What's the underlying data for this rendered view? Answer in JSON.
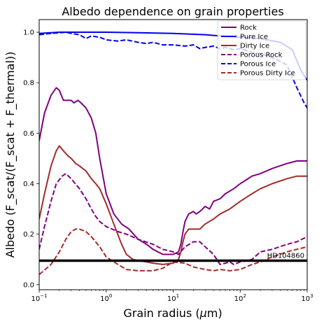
{
  "chart_data": {
    "type": "line",
    "title": "Albedo dependence on grain properties",
    "xlabel_prefix": "Grain radius (",
    "xlabel_mu": "μ",
    "xlabel_suffix": "m)",
    "ylabel": "Albedo (F_scat/(F_scat + F_thermal))",
    "x_scale": "log",
    "xlim": [
      0.1,
      1000
    ],
    "ylim": [
      -0.02,
      1.05
    ],
    "x_ticks": [
      0.1,
      1,
      10,
      100,
      1000
    ],
    "x_tick_labels": [
      {
        "base": "10",
        "exp": "−1"
      },
      {
        "base": "10",
        "exp": "0"
      },
      {
        "base": "10",
        "exp": "1"
      },
      {
        "base": "10",
        "exp": "2"
      },
      {
        "base": "10",
        "exp": "3"
      }
    ],
    "y_ticks": [
      0.0,
      0.2,
      0.4,
      0.6,
      0.8,
      1.0
    ],
    "y_tick_labels": [
      "0.0",
      "0.2",
      "0.4",
      "0.6",
      "0.8",
      "1.0"
    ],
    "grid": false,
    "legend_position": "top-right",
    "series": [
      {
        "name": "Rock",
        "color": "#800080",
        "dash": "solid",
        "points": [
          [
            0.1,
            0.57
          ],
          [
            0.12,
            0.68
          ],
          [
            0.15,
            0.75
          ],
          [
            0.18,
            0.78
          ],
          [
            0.2,
            0.77
          ],
          [
            0.23,
            0.73
          ],
          [
            0.27,
            0.73
          ],
          [
            0.3,
            0.73
          ],
          [
            0.33,
            0.72
          ],
          [
            0.38,
            0.73
          ],
          [
            0.42,
            0.72
          ],
          [
            0.5,
            0.7
          ],
          [
            0.6,
            0.66
          ],
          [
            0.7,
            0.6
          ],
          [
            0.8,
            0.5
          ],
          [
            1.0,
            0.36
          ],
          [
            1.3,
            0.28
          ],
          [
            1.7,
            0.24
          ],
          [
            2.2,
            0.22
          ],
          [
            3.0,
            0.18
          ],
          [
            4.0,
            0.16
          ],
          [
            5.0,
            0.14
          ],
          [
            7.0,
            0.12
          ],
          [
            10,
            0.12
          ],
          [
            12,
            0.13
          ],
          [
            13,
            0.16
          ],
          [
            14,
            0.21
          ],
          [
            15,
            0.25
          ],
          [
            17,
            0.28
          ],
          [
            20,
            0.29
          ],
          [
            22,
            0.28
          ],
          [
            25,
            0.29
          ],
          [
            30,
            0.31
          ],
          [
            35,
            0.3
          ],
          [
            40,
            0.33
          ],
          [
            50,
            0.34
          ],
          [
            60,
            0.36
          ],
          [
            80,
            0.38
          ],
          [
            100,
            0.4
          ],
          [
            150,
            0.43
          ],
          [
            200,
            0.44
          ],
          [
            300,
            0.46
          ],
          [
            500,
            0.48
          ],
          [
            700,
            0.49
          ],
          [
            1000,
            0.49
          ]
        ]
      },
      {
        "name": "Pure Ice",
        "color": "#0000ee",
        "dash": "solid",
        "points": [
          [
            0.1,
            0.995
          ],
          [
            0.2,
            1.0
          ],
          [
            0.3,
            1.0
          ],
          [
            1.0,
            1.0
          ],
          [
            3.0,
            0.998
          ],
          [
            10,
            0.995
          ],
          [
            30,
            0.99
          ],
          [
            50,
            0.985
          ],
          [
            100,
            0.98
          ],
          [
            200,
            0.975
          ],
          [
            400,
            0.96
          ],
          [
            600,
            0.93
          ],
          [
            800,
            0.85
          ],
          [
            1000,
            0.81
          ]
        ]
      },
      {
        "name": "Dirty Ice",
        "color": "#a52a2a",
        "dash": "solid",
        "points": [
          [
            0.1,
            0.26
          ],
          [
            0.12,
            0.36
          ],
          [
            0.15,
            0.47
          ],
          [
            0.18,
            0.53
          ],
          [
            0.2,
            0.55
          ],
          [
            0.23,
            0.53
          ],
          [
            0.27,
            0.51
          ],
          [
            0.3,
            0.5
          ],
          [
            0.35,
            0.48
          ],
          [
            0.4,
            0.47
          ],
          [
            0.5,
            0.45
          ],
          [
            0.6,
            0.42
          ],
          [
            0.7,
            0.4
          ],
          [
            0.8,
            0.38
          ],
          [
            1.0,
            0.32
          ],
          [
            1.3,
            0.24
          ],
          [
            1.7,
            0.16
          ],
          [
            2.0,
            0.12
          ],
          [
            2.5,
            0.1
          ],
          [
            3.0,
            0.095
          ],
          [
            4.0,
            0.09
          ],
          [
            5.0,
            0.085
          ],
          [
            7.0,
            0.08
          ],
          [
            10,
            0.085
          ],
          [
            12,
            0.1
          ],
          [
            13,
            0.13
          ],
          [
            14,
            0.17
          ],
          [
            15,
            0.2
          ],
          [
            17,
            0.22
          ],
          [
            20,
            0.22
          ],
          [
            25,
            0.22
          ],
          [
            30,
            0.24
          ],
          [
            40,
            0.26
          ],
          [
            50,
            0.28
          ],
          [
            70,
            0.3
          ],
          [
            100,
            0.33
          ],
          [
            150,
            0.36
          ],
          [
            200,
            0.38
          ],
          [
            300,
            0.4
          ],
          [
            500,
            0.42
          ],
          [
            700,
            0.43
          ],
          [
            1000,
            0.43
          ]
        ]
      },
      {
        "name": "Porous Rock",
        "color": "#800080",
        "dash": "dashed",
        "points": [
          [
            0.1,
            0.14
          ],
          [
            0.12,
            0.23
          ],
          [
            0.15,
            0.33
          ],
          [
            0.18,
            0.4
          ],
          [
            0.22,
            0.43
          ],
          [
            0.25,
            0.44
          ],
          [
            0.3,
            0.42
          ],
          [
            0.4,
            0.38
          ],
          [
            0.5,
            0.34
          ],
          [
            0.6,
            0.3
          ],
          [
            0.7,
            0.27
          ],
          [
            0.8,
            0.25
          ],
          [
            1.0,
            0.23
          ],
          [
            1.5,
            0.21
          ],
          [
            2.0,
            0.2
          ],
          [
            3.0,
            0.18
          ],
          [
            5.0,
            0.16
          ],
          [
            7.0,
            0.14
          ],
          [
            10,
            0.13
          ],
          [
            12,
            0.12
          ],
          [
            15,
            0.15
          ],
          [
            20,
            0.17
          ],
          [
            25,
            0.17
          ],
          [
            30,
            0.15
          ],
          [
            40,
            0.12
          ],
          [
            50,
            0.08
          ],
          [
            60,
            0.085
          ],
          [
            70,
            0.09
          ],
          [
            80,
            0.08
          ],
          [
            100,
            0.09
          ],
          [
            150,
            0.1
          ],
          [
            200,
            0.13
          ],
          [
            300,
            0.14
          ],
          [
            500,
            0.16
          ],
          [
            700,
            0.17
          ],
          [
            1000,
            0.19
          ]
        ]
      },
      {
        "name": "Porous Ice",
        "color": "#0000ee",
        "dash": "dashed",
        "points": [
          [
            0.1,
            0.99
          ],
          [
            0.15,
            0.995
          ],
          [
            0.25,
            1.0
          ],
          [
            0.3,
            0.995
          ],
          [
            0.4,
            0.99
          ],
          [
            0.5,
            0.975
          ],
          [
            0.6,
            0.985
          ],
          [
            0.8,
            0.98
          ],
          [
            1.0,
            0.97
          ],
          [
            1.5,
            0.965
          ],
          [
            2.0,
            0.97
          ],
          [
            3.0,
            0.96
          ],
          [
            4.0,
            0.955
          ],
          [
            5.0,
            0.96
          ],
          [
            7.0,
            0.95
          ],
          [
            10,
            0.95
          ],
          [
            15,
            0.945
          ],
          [
            20,
            0.95
          ],
          [
            25,
            0.935
          ],
          [
            30,
            0.94
          ],
          [
            40,
            0.945
          ],
          [
            50,
            0.935
          ],
          [
            60,
            0.94
          ],
          [
            80,
            0.93
          ],
          [
            100,
            0.935
          ],
          [
            150,
            0.92
          ],
          [
            200,
            0.915
          ],
          [
            300,
            0.9
          ],
          [
            500,
            0.87
          ],
          [
            700,
            0.78
          ],
          [
            900,
            0.72
          ],
          [
            1000,
            0.7
          ]
        ]
      },
      {
        "name": "Porous Dirty Ice",
        "color": "#a52a2a",
        "dash": "dashed",
        "points": [
          [
            0.1,
            0.04
          ],
          [
            0.15,
            0.08
          ],
          [
            0.2,
            0.13
          ],
          [
            0.25,
            0.18
          ],
          [
            0.3,
            0.21
          ],
          [
            0.35,
            0.22
          ],
          [
            0.4,
            0.22
          ],
          [
            0.5,
            0.21
          ],
          [
            0.6,
            0.19
          ],
          [
            0.8,
            0.15
          ],
          [
            1.0,
            0.11
          ],
          [
            1.3,
            0.09
          ],
          [
            2.0,
            0.06
          ],
          [
            3.0,
            0.055
          ],
          [
            5.0,
            0.055
          ],
          [
            7.0,
            0.065
          ],
          [
            10,
            0.09
          ],
          [
            15,
            0.085
          ],
          [
            20,
            0.07
          ],
          [
            30,
            0.06
          ],
          [
            40,
            0.055
          ],
          [
            50,
            0.06
          ],
          [
            70,
            0.055
          ],
          [
            100,
            0.06
          ],
          [
            150,
            0.08
          ],
          [
            200,
            0.09
          ],
          [
            300,
            0.11
          ],
          [
            500,
            0.13
          ],
          [
            700,
            0.14
          ],
          [
            1000,
            0.15
          ]
        ]
      }
    ],
    "reference_line": {
      "name": "HD104860",
      "y": 0.095,
      "color": "#000000"
    }
  }
}
